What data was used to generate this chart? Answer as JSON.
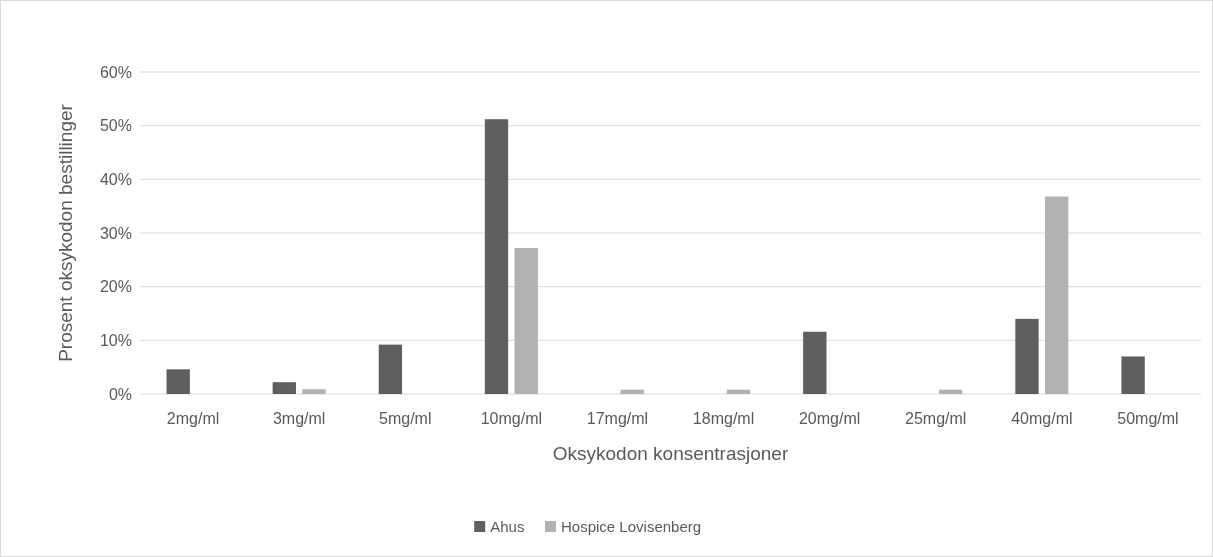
{
  "chart_data": {
    "type": "bar",
    "xlabel": "Oksykodon konsentrasjoner",
    "ylabel": "Prosent oksykodon bestillinger",
    "categories": [
      "2mg/ml",
      "3mg/ml",
      "5mg/ml",
      "10mg/ml",
      "17mg/ml",
      "18mg/ml",
      "20mg/ml",
      "25mg/ml",
      "40mg/ml",
      "50mg/ml"
    ],
    "series": [
      {
        "name": "Ahus",
        "color": "#5f5f5f",
        "values": [
          4.6,
          2.2,
          9.2,
          51.2,
          0,
          0,
          11.6,
          0,
          14.0,
          7.0
        ]
      },
      {
        "name": "Hospice Lovisenberg",
        "color": "#b2b2b2",
        "values": [
          0,
          0.9,
          0,
          27.2,
          0.8,
          0.8,
          0,
          0.8,
          36.8,
          0
        ]
      }
    ],
    "ylim": [
      0,
      60
    ],
    "yticks": [
      {
        "value": 0,
        "label": "0%"
      },
      {
        "value": 10,
        "label": "10%"
      },
      {
        "value": 20,
        "label": "20%"
      },
      {
        "value": 30,
        "label": "30%"
      },
      {
        "value": 40,
        "label": "40%"
      },
      {
        "value": 50,
        "label": "50%"
      },
      {
        "value": 60,
        "label": "60%"
      }
    ],
    "grid": "y",
    "legend": "bottom"
  }
}
